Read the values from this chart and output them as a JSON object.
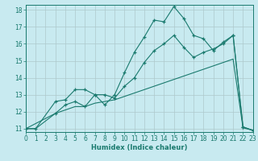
{
  "xlabel": "Humidex (Indice chaleur)",
  "xlim": [
    0,
    23
  ],
  "ylim": [
    10.8,
    18.3
  ],
  "yticks": [
    11,
    12,
    13,
    14,
    15,
    16,
    17,
    18
  ],
  "xticks": [
    0,
    1,
    2,
    3,
    4,
    5,
    6,
    7,
    8,
    9,
    10,
    11,
    12,
    13,
    14,
    15,
    16,
    17,
    18,
    19,
    20,
    21,
    22,
    23
  ],
  "bg_color": "#c8eaf0",
  "line_color": "#1a7a6e",
  "grid_color": "#aec8cc",
  "line1_x": [
    0,
    1,
    3,
    4,
    5,
    6,
    7,
    8,
    9,
    10,
    11,
    12,
    13,
    14,
    15,
    16,
    17,
    18,
    19,
    20,
    21,
    22,
    23
  ],
  "line1_y": [
    11,
    11,
    12.6,
    12.7,
    13.3,
    13.3,
    13.0,
    12.4,
    13.0,
    14.3,
    15.5,
    16.4,
    17.4,
    17.3,
    18.2,
    17.5,
    16.5,
    16.3,
    15.6,
    16.1,
    16.5,
    11.1,
    10.9
  ],
  "line2_x": [
    0,
    3,
    4,
    5,
    6,
    7,
    8,
    9,
    10,
    11,
    12,
    13,
    14,
    15,
    16,
    17,
    18,
    19,
    20,
    21,
    22,
    23
  ],
  "line2_y": [
    11,
    11.9,
    12.4,
    12.6,
    12.3,
    13.0,
    13.0,
    12.8,
    13.5,
    14.0,
    14.9,
    15.6,
    16.0,
    16.5,
    15.8,
    15.2,
    15.5,
    15.7,
    16.0,
    16.5,
    11.1,
    10.9
  ],
  "line3_x": [
    0,
    1,
    3,
    4,
    5,
    6,
    7,
    8,
    9,
    10,
    11,
    12,
    13,
    14,
    15,
    16,
    17,
    18,
    19,
    20,
    21,
    22,
    23
  ],
  "line3_y": [
    11,
    11,
    11.9,
    12.1,
    12.3,
    12.3,
    12.5,
    12.6,
    12.7,
    12.9,
    13.1,
    13.3,
    13.5,
    13.7,
    13.9,
    14.1,
    14.3,
    14.5,
    14.7,
    14.9,
    15.1,
    11.05,
    10.9
  ]
}
